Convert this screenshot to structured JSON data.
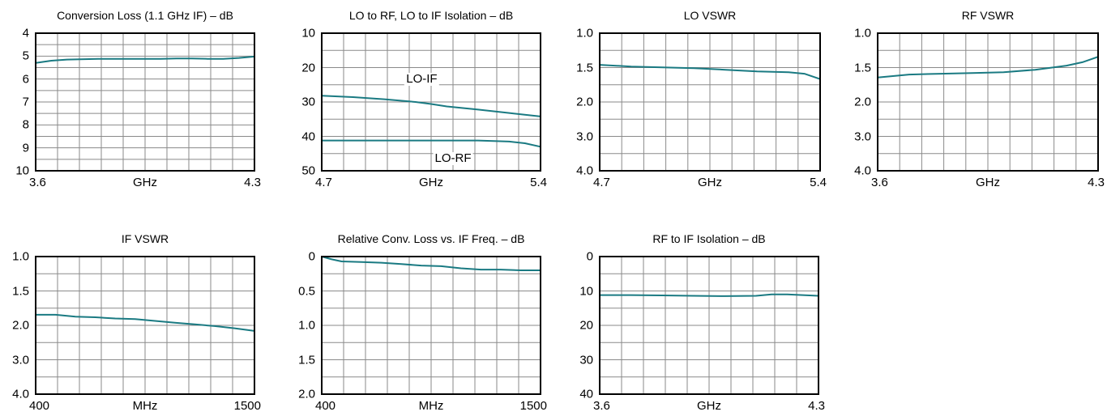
{
  "line_color": "#1a7a82",
  "chart_data": [
    {
      "type": "line",
      "title": "Conversion Loss (1.1 GHz IF) – dB",
      "xlim": [
        3.6,
        4.3
      ],
      "ylim": [
        4,
        10
      ],
      "y_inverted": true,
      "grid": true,
      "x_ticks": [
        "3.6",
        "GHz",
        "4.3"
      ],
      "y_ticks": [
        "4",
        "5",
        "6",
        "7",
        "8",
        "9",
        "10"
      ],
      "series": [
        {
          "x": [
            3.6,
            3.65,
            3.7,
            3.8,
            3.9,
            4.0,
            4.05,
            4.1,
            4.15,
            4.2,
            4.25,
            4.3
          ],
          "y": [
            5.3,
            5.2,
            5.15,
            5.12,
            5.12,
            5.12,
            5.1,
            5.1,
            5.12,
            5.12,
            5.08,
            5.02
          ]
        }
      ],
      "labels": []
    },
    {
      "type": "line",
      "title": "LO to RF, LO to IF Isolation – dB",
      "xlim": [
        4.7,
        5.4
      ],
      "ylim": [
        10,
        50
      ],
      "y_inverted": true,
      "grid": true,
      "x_ticks": [
        "4.7",
        "GHz",
        "5.4"
      ],
      "y_ticks": [
        "10",
        "20",
        "30",
        "40",
        "50"
      ],
      "series": [
        {
          "name": "LO-IF",
          "x": [
            4.7,
            4.8,
            4.9,
            5.0,
            5.05,
            5.1,
            5.2,
            5.3,
            5.4
          ],
          "y": [
            28.2,
            28.6,
            29.2,
            30.0,
            30.6,
            31.3,
            32.2,
            33.2,
            34.2
          ]
        },
        {
          "name": "LO-RF",
          "x": [
            4.7,
            4.8,
            4.9,
            5.0,
            5.1,
            5.2,
            5.3,
            5.35,
            5.4
          ],
          "y": [
            41.2,
            41.2,
            41.2,
            41.2,
            41.2,
            41.2,
            41.5,
            42.0,
            43.0
          ]
        }
      ],
      "labels": [
        {
          "text": "LO-IF",
          "x": 5.02,
          "y": 23.5
        },
        {
          "text": "LO-RF",
          "x": 5.12,
          "y": 46.5
        }
      ]
    },
    {
      "type": "line",
      "title": "LO VSWR",
      "xlim": [
        4.7,
        5.4
      ],
      "ylim": [
        1.0,
        4.0
      ],
      "y_scale": "reflection",
      "y_inverted": true,
      "grid": true,
      "x_ticks": [
        "4.7",
        "GHz",
        "5.4"
      ],
      "y_ticks": [
        "1.0",
        "1.5",
        "2.0",
        "3.0",
        "4.0"
      ],
      "series": [
        {
          "x": [
            4.7,
            4.8,
            4.9,
            5.0,
            5.1,
            5.2,
            5.3,
            5.35,
            5.4
          ],
          "y": [
            1.32,
            1.34,
            1.35,
            1.36,
            1.38,
            1.4,
            1.41,
            1.43,
            1.5
          ]
        }
      ],
      "labels": []
    },
    {
      "type": "line",
      "title": "RF VSWR",
      "xlim": [
        3.6,
        4.3
      ],
      "ylim": [
        1.0,
        4.0
      ],
      "y_scale": "reflection",
      "y_inverted": true,
      "grid": true,
      "x_ticks": [
        "3.6",
        "GHz",
        "4.3"
      ],
      "y_ticks": [
        "1.0",
        "1.5",
        "2.0",
        "3.0",
        "4.0"
      ],
      "series": [
        {
          "x": [
            3.6,
            3.7,
            3.8,
            3.9,
            4.0,
            4.1,
            4.2,
            4.25,
            4.3
          ],
          "y": [
            1.48,
            1.44,
            1.43,
            1.42,
            1.41,
            1.38,
            1.33,
            1.29,
            1.23
          ]
        }
      ],
      "labels": []
    },
    {
      "type": "line",
      "title": "IF VSWR",
      "xlim": [
        400,
        1500
      ],
      "ylim": [
        1.0,
        4.0
      ],
      "y_scale": "reflection",
      "y_inverted": true,
      "grid": true,
      "x_ticks": [
        "400",
        "MHz",
        "1500"
      ],
      "y_ticks": [
        "1.0",
        "1.5",
        "2.0",
        "3.0",
        "4.0"
      ],
      "series": [
        {
          "x": [
            400,
            500,
            600,
            700,
            800,
            900,
            1000,
            1100,
            1200,
            1300,
            1400,
            1500
          ],
          "y": [
            1.68,
            1.68,
            1.71,
            1.72,
            1.74,
            1.75,
            1.78,
            1.81,
            1.84,
            1.87,
            1.91,
            1.96
          ]
        }
      ],
      "labels": []
    },
    {
      "type": "line",
      "title": "Relative Conv. Loss vs. IF Freq. – dB",
      "xlim": [
        400,
        1500
      ],
      "ylim": [
        0,
        2.0
      ],
      "y_inverted": true,
      "grid": true,
      "x_ticks": [
        "400",
        "MHz",
        "1500"
      ],
      "y_ticks": [
        "0",
        "0.5",
        "1.0",
        "1.5",
        "2.0"
      ],
      "series": [
        {
          "x": [
            400,
            450,
            500,
            600,
            700,
            800,
            900,
            1000,
            1100,
            1200,
            1300,
            1400,
            1500
          ],
          "y": [
            0.0,
            0.04,
            0.07,
            0.08,
            0.09,
            0.11,
            0.13,
            0.14,
            0.17,
            0.19,
            0.19,
            0.2,
            0.2
          ]
        }
      ],
      "labels": []
    },
    {
      "type": "line",
      "title": "RF to IF Isolation – dB",
      "xlim": [
        3.6,
        4.3
      ],
      "ylim": [
        0,
        40
      ],
      "y_inverted": true,
      "grid": true,
      "x_ticks": [
        "3.6",
        "GHz",
        "4.3"
      ],
      "y_ticks": [
        "0",
        "10",
        "20",
        "30",
        "40"
      ],
      "series": [
        {
          "x": [
            3.6,
            3.7,
            3.8,
            3.9,
            4.0,
            4.1,
            4.15,
            4.2,
            4.25,
            4.3
          ],
          "y": [
            11.2,
            11.2,
            11.3,
            11.4,
            11.5,
            11.4,
            11.0,
            11.0,
            11.2,
            11.4
          ]
        }
      ],
      "labels": []
    }
  ]
}
